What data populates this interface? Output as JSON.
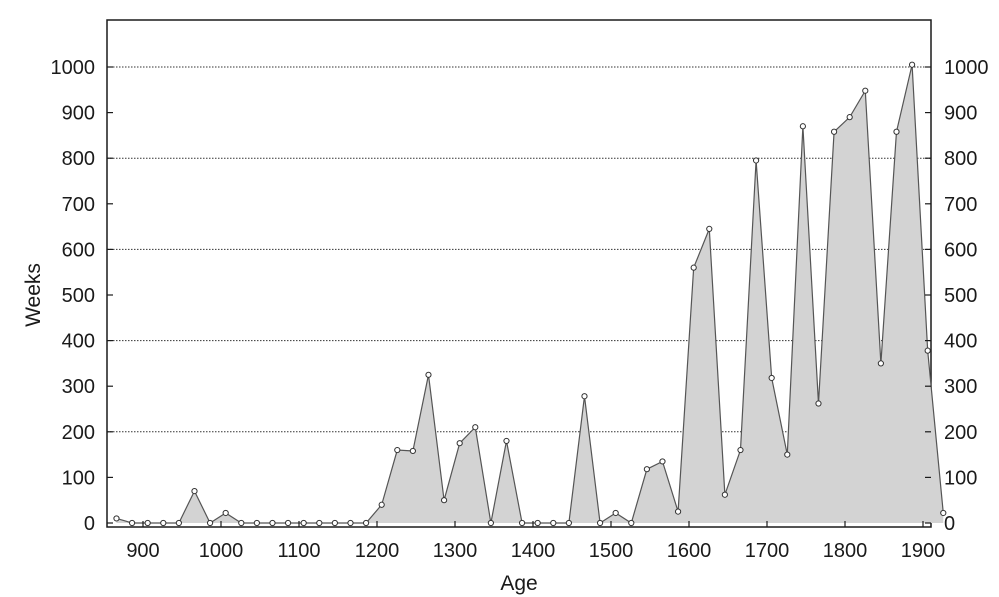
{
  "chart_data": {
    "type": "area",
    "title": "",
    "xlabel": "Age",
    "ylabel": "Weeks",
    "xlim": [
      850,
      1905
    ],
    "ylim": [
      0,
      1090
    ],
    "x_ticks": [
      900,
      1000,
      1100,
      1200,
      1300,
      1400,
      1500,
      1600,
      1700,
      1800,
      1900
    ],
    "x_tick_labels": [
      "900",
      "1000",
      "1100",
      "1200",
      "1300",
      "1400",
      "1500",
      "1600",
      "1700",
      "1800",
      "1900"
    ],
    "y_ticks": [
      0,
      100,
      200,
      300,
      400,
      500,
      600,
      700,
      800,
      900,
      1000
    ],
    "y_tick_labels": [
      "0",
      "100",
      "200",
      "300",
      "400",
      "500",
      "600",
      "700",
      "800",
      "900",
      "1000"
    ],
    "right_axis_ticks": true,
    "gridlines_dotted_at": [
      200,
      400,
      600,
      800,
      1000
    ],
    "legend": "none",
    "colors": {
      "fill": "#d3d3d3",
      "line": "#555555",
      "marker_fill": "#ffffff",
      "grid": "#333333"
    },
    "x": [
      866,
      886,
      906,
      926,
      946,
      966,
      986,
      1006,
      1026,
      1046,
      1066,
      1086,
      1106,
      1126,
      1146,
      1166,
      1186,
      1206,
      1226,
      1246,
      1266,
      1286,
      1306,
      1326,
      1346,
      1366,
      1386,
      1406,
      1426,
      1446,
      1466,
      1486,
      1506,
      1526,
      1546,
      1566,
      1586,
      1606,
      1626,
      1646,
      1666,
      1686,
      1706,
      1726,
      1746,
      1766,
      1786,
      1806,
      1826,
      1846,
      1866,
      1886,
      1906,
      1926
    ],
    "values": [
      10,
      0,
      0,
      0,
      0,
      70,
      0,
      22,
      0,
      0,
      0,
      0,
      0,
      0,
      0,
      0,
      0,
      40,
      160,
      158,
      325,
      50,
      175,
      210,
      0,
      180,
      0,
      0,
      0,
      0,
      278,
      0,
      22,
      0,
      118,
      135,
      25,
      560,
      645,
      62,
      160,
      795,
      318,
      150,
      870,
      262,
      858,
      890,
      948,
      350,
      858,
      1005,
      378,
      22
    ]
  }
}
